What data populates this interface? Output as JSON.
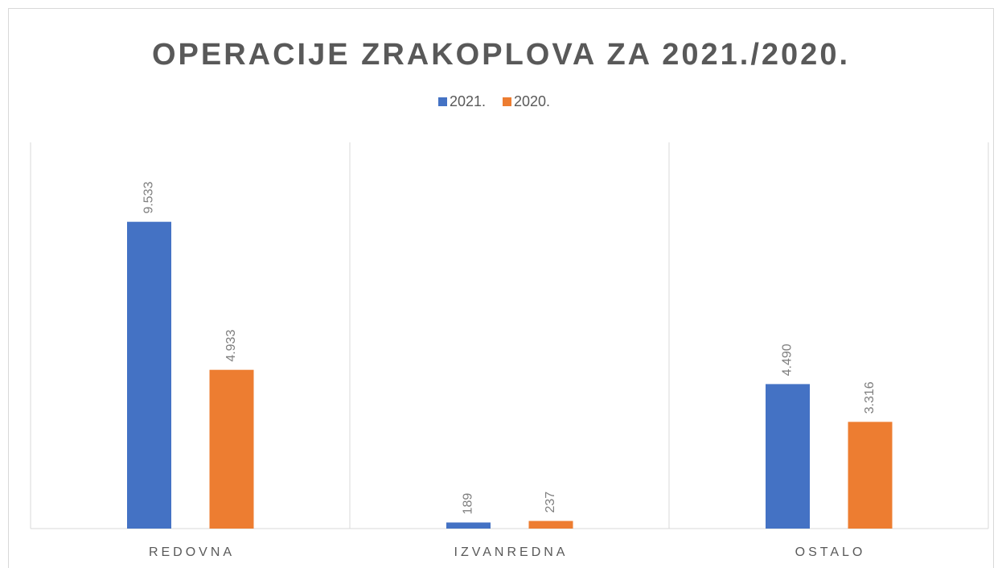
{
  "chart_data": {
    "type": "bar",
    "title": "OPERACIJE ZRAKOPLOVA ZA 2021./2020.",
    "categories": [
      "REDOVNA",
      "IZVANREDNA",
      "OSTALO"
    ],
    "series": [
      {
        "name": "2021.",
        "color": "#4472c4",
        "values": [
          9533,
          189,
          4490
        ],
        "value_labels": [
          "9.533",
          "189",
          "4.490"
        ]
      },
      {
        "name": "2020.",
        "color": "#ed7d31",
        "values": [
          4933,
          237,
          3316
        ],
        "value_labels": [
          "4.933",
          "237",
          "3.316"
        ]
      }
    ],
    "ylim": [
      0,
      12000
    ],
    "legend": "top"
  }
}
